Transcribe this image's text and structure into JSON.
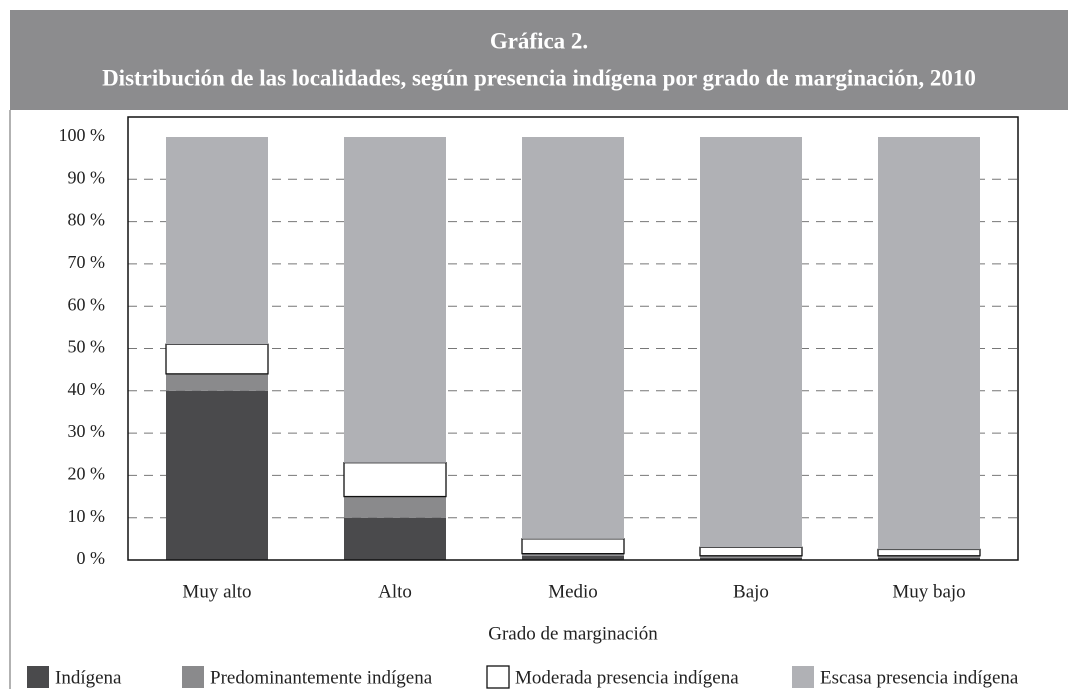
{
  "chart_data": {
    "type": "stacked_bar",
    "title": "Gráfica 2.",
    "subtitle": "Distribución de las localidades, según presencia indígena por grado de marginación, 2010",
    "x_label": "Grado de marginación",
    "categories": [
      "Muy alto",
      "Alto",
      "Medio",
      "Bajo",
      "Muy bajo"
    ],
    "series": [
      {
        "name": "Indígena",
        "color": "#4a4a4c",
        "values": [
          40,
          10,
          1,
          0.5,
          0.5
        ]
      },
      {
        "name": "Predominantemente indígena",
        "color": "#8a8a8c",
        "values": [
          4,
          5,
          0.5,
          0.5,
          0.5
        ]
      },
      {
        "name": "Moderada presencia indígena",
        "color": "#ffffff",
        "values": [
          7,
          8,
          3.5,
          2,
          1.5
        ]
      },
      {
        "name": "Escasa presencia indígena",
        "color": "#b0b1b5",
        "values": [
          49,
          77,
          95,
          97,
          97.5
        ]
      }
    ],
    "ylim": [
      0,
      100
    ],
    "yticks": [
      {
        "value": 0,
        "label": "0 %"
      },
      {
        "value": 10,
        "label": "10 %"
      },
      {
        "value": 20,
        "label": "20 %"
      },
      {
        "value": 30,
        "label": "30 %"
      },
      {
        "value": 40,
        "label": "40 %"
      },
      {
        "value": 50,
        "label": "50 %"
      },
      {
        "value": 60,
        "label": "60 %"
      },
      {
        "value": 70,
        "label": "70 %"
      },
      {
        "value": 80,
        "label": "80 %"
      },
      {
        "value": 90,
        "label": "90 %"
      },
      {
        "value": 100,
        "label": "100 %"
      }
    ],
    "grid": true,
    "legend": "bottom"
  }
}
